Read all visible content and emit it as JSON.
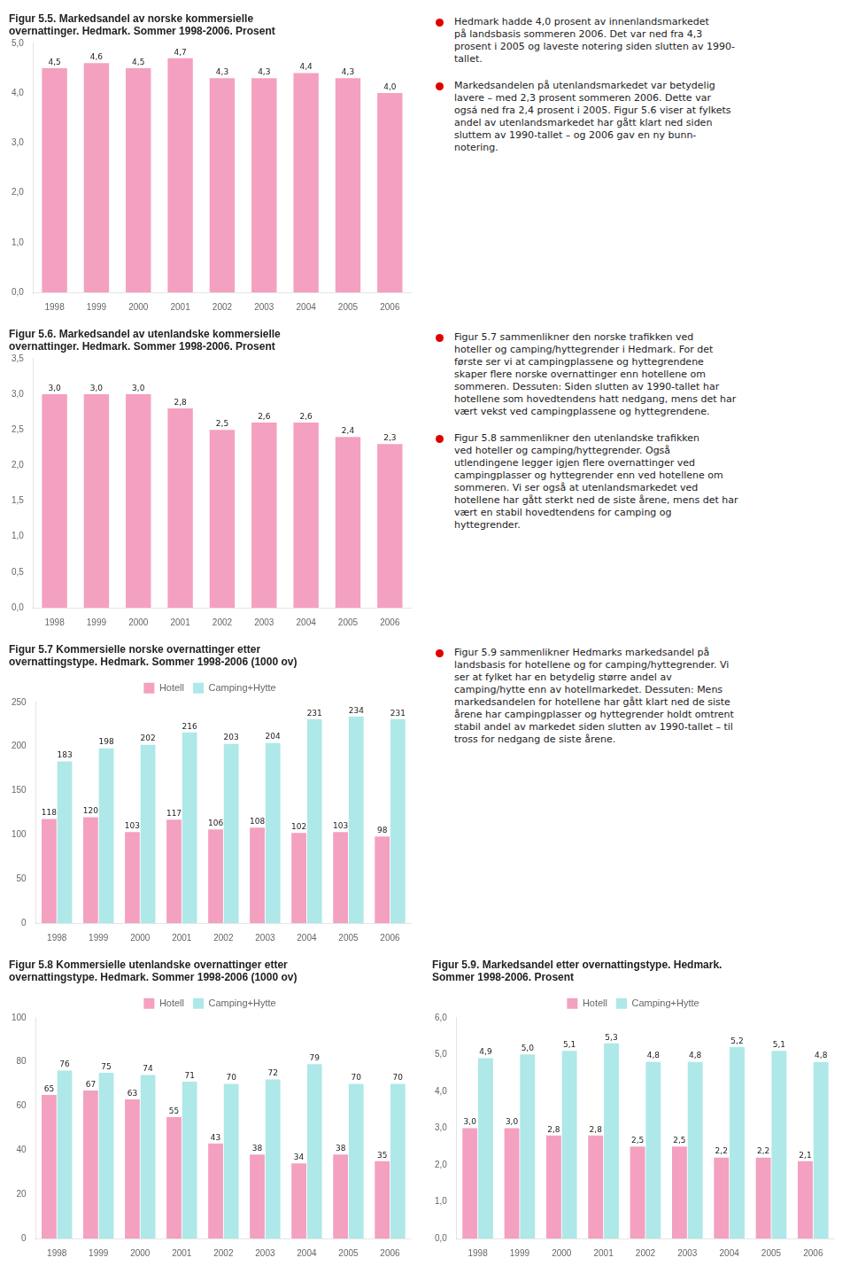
{
  "chart_data": [
    {
      "type": "bar",
      "title": "Figur 5.5. Markedsandel av norske kommersielle\novernattinger. Hedmark. Sommer 1998-2006. Prosent",
      "categories": [
        1998,
        1999,
        2000,
        2001,
        2002,
        2003,
        2004,
        2005,
        2006
      ],
      "values": [
        4.5,
        4.6,
        4.5,
        4.7,
        4.3,
        4.3,
        4.4,
        4.3,
        4.0
      ],
      "value_labels": [
        "4,5",
        "4,6",
        "4,5",
        "4,7",
        "4,3",
        "4,3",
        "4,4",
        "4,3",
        "4,0"
      ],
      "color": "#f4a0c0",
      "ylim": [
        0.0,
        5.0
      ],
      "yticks": [
        {
          "value": 0.0,
          "label": "0,0"
        },
        {
          "value": 1.0,
          "label": "1,0"
        },
        {
          "value": 2.0,
          "label": "2,0"
        },
        {
          "value": 3.0,
          "label": "3,0"
        },
        {
          "value": 4.0,
          "label": "4,0"
        },
        {
          "value": 5.0,
          "label": "5,0"
        }
      ],
      "grid": false,
      "data_labels": true,
      "annotations": [
        "Hedmark hadde 4,0 prosent av innenlandsmarkedet\npå landsbasis sommeren 2006. Det var ned fra 4,3\nprosent i 2005 og laveste notering siden slutten av 1990-\ntallet.",
        "Markedsandelen på utenlandsmarkedet var betydelig\nlavere – med 2,3 prosent sommeren 2006. Dette var\nogsá ned fra 2,4 prosent i 2005. Figur 5.6 viser at fylkets\nandel av utenlandsmarkedet har gått klart ned siden\nsluttem av 1990-tallet – og 2006 gav en ny bunn-\nnotering."
      ]
    },
    {
      "type": "bar",
      "title": "Figur 5.6. Markedsandel av utenlandske kommersielle\novernattinger. Hedmark. Sommer 1998-2006. Prosent",
      "categories": [
        1998,
        1999,
        2000,
        2001,
        2002,
        2003,
        2004,
        2005,
        2006
      ],
      "values": [
        3.0,
        3.0,
        3.0,
        2.8,
        2.5,
        2.6,
        2.6,
        2.4,
        2.3
      ],
      "value_labels": [
        "3,0",
        "3,0",
        "3,0",
        "2,8",
        "2,5",
        "2,6",
        "2,6",
        "2,4",
        "2,3"
      ],
      "color": "#f4a0c0",
      "ylim": [
        0.0,
        3.5
      ],
      "yticks": [
        {
          "value": 0.0,
          "label": "0,0"
        },
        {
          "value": 0.5,
          "label": "0,5"
        },
        {
          "value": 1.0,
          "label": "1,0"
        },
        {
          "value": 1.5,
          "label": "1,5"
        },
        {
          "value": 2.0,
          "label": "2,0"
        },
        {
          "value": 2.5,
          "label": "2,5"
        },
        {
          "value": 3.0,
          "label": "3,0"
        },
        {
          "value": 3.5,
          "label": "3,5"
        }
      ],
      "grid": false,
      "data_labels": true,
      "annotations": [
        "Figur 5.7 sammenlikner den norske trafikken ved\nhoteller og camping/hyttegrender i Hedmark. For det\nførste ser vi at campingplassene og hyttegrendene\nskaper flere norske overnattinger enn hotellene om\nsommeren. Dessuten: Siden slutten av 1990-tallet har\nhotellene som hovedtendens hatt nedgang, mens det har\nvært vekst ved campingplassene og hyttegrendene.",
        "Figur 5.8 sammenlikner den utenlandske trafikken\nved hoteller og camping/hyttegrender. Også\nutlendingene legger igjen flere overnattinger ved\ncampingplasser og hyttegrender enn ved hotellene om\nsommeren. Vi ser også at utenlandsmarkedet ved\nhotellene har gått sterkt ned de siste årene, mens det har\nvært en stabil hovedtendens for camping og\nhyttegrender."
      ]
    },
    {
      "type": "bar",
      "title": "Figur 5.7 Kommersielle norske overnattinger etter\novernattingstype. Hedmark. Sommer 1998-2006 (1000 ov)",
      "categories": [
        1998,
        1999,
        2000,
        2001,
        2002,
        2003,
        2004,
        2005,
        2006
      ],
      "series": [
        {
          "name": "Hotell",
          "color": "#f4a0c0",
          "values": [
            118,
            120,
            103,
            117,
            106,
            108,
            102,
            103,
            98
          ]
        },
        {
          "name": "Camping+Hytte",
          "color": "#aee8e8",
          "values": [
            183,
            198,
            202,
            216,
            203,
            204,
            231,
            234,
            231
          ]
        }
      ],
      "ylim": [
        0,
        250
      ],
      "yticks": [
        0,
        50,
        100,
        150,
        200,
        250
      ],
      "grid": false,
      "legend": "top",
      "data_labels": true,
      "annotations": [
        "Figur 5.9 sammenlikner Hedmarks markedsandel på\nlandsbasis for hotellene og for camping/hyttegrender. Vi\nser at fylket har en betydelig større andel av\ncamping/hytte enn av hotellmarkedet. Dessuten: Mens\nmarkedsandelen for hotellene har gått klart ned de siste\nårene har campingplasser og hyttegrender holdt omtrent\nstabil andel av markedet siden slutten av 1990-tallet – til\ntross for nedgang de siste årene."
      ]
    },
    {
      "type": "bar",
      "title": "Figur 5.8 Kommersielle utenlandske overnattinger etter\novernattingstype. Hedmark. Sommer 1998-2006 (1000 ov)",
      "categories": [
        1998,
        1999,
        2000,
        2001,
        2002,
        2003,
        2004,
        2005,
        2006
      ],
      "series": [
        {
          "name": "Hotell",
          "color": "#f4a0c0",
          "values": [
            65,
            67,
            63,
            55,
            43,
            38,
            34,
            38,
            35
          ]
        },
        {
          "name": "Camping+Hytte",
          "color": "#aee8e8",
          "values": [
            76,
            75,
            74,
            71,
            70,
            72,
            79,
            70,
            70
          ]
        }
      ],
      "ylim": [
        0,
        100
      ],
      "yticks": [
        0,
        20,
        40,
        60,
        80,
        100
      ],
      "grid": false,
      "legend": "top",
      "data_labels": true
    },
    {
      "type": "bar",
      "title": "Figur 5.9. Markedsandel etter overnattingstype. Hedmark.\nSommer 1998-2006. Prosent",
      "categories": [
        1998,
        1999,
        2000,
        2001,
        2002,
        2003,
        2004,
        2005,
        2006
      ],
      "series": [
        {
          "name": "Hotell",
          "color": "#f4a0c0",
          "values": [
            3.0,
            3.0,
            2.8,
            2.8,
            2.5,
            2.5,
            2.2,
            2.2,
            2.1
          ],
          "value_labels": [
            "3,0",
            "3,0",
            "2,8",
            "2,8",
            "2,5",
            "2,5",
            "2,2",
            "2,2",
            "2,1"
          ]
        },
        {
          "name": "Camping+Hytte",
          "color": "#aee8e8",
          "values": [
            4.9,
            5.0,
            5.1,
            5.3,
            4.8,
            4.8,
            5.2,
            5.1,
            4.8
          ],
          "value_labels": [
            "4,9",
            "5,0",
            "5,1",
            "5,3",
            "4,8",
            "4,8",
            "5,2",
            "5,1",
            "4,8"
          ]
        }
      ],
      "ylim": [
        0.0,
        6.0
      ],
      "yticks": [
        {
          "value": 0.0,
          "label": "0,0"
        },
        {
          "value": 1.0,
          "label": "1,0"
        },
        {
          "value": 2.0,
          "label": "2,0"
        },
        {
          "value": 3.0,
          "label": "3,0"
        },
        {
          "value": 4.0,
          "label": "4,0"
        },
        {
          "value": 5.0,
          "label": "5,0"
        },
        {
          "value": 6.0,
          "label": "6,0"
        }
      ],
      "grid": false,
      "legend": "top",
      "data_labels": true
    }
  ]
}
